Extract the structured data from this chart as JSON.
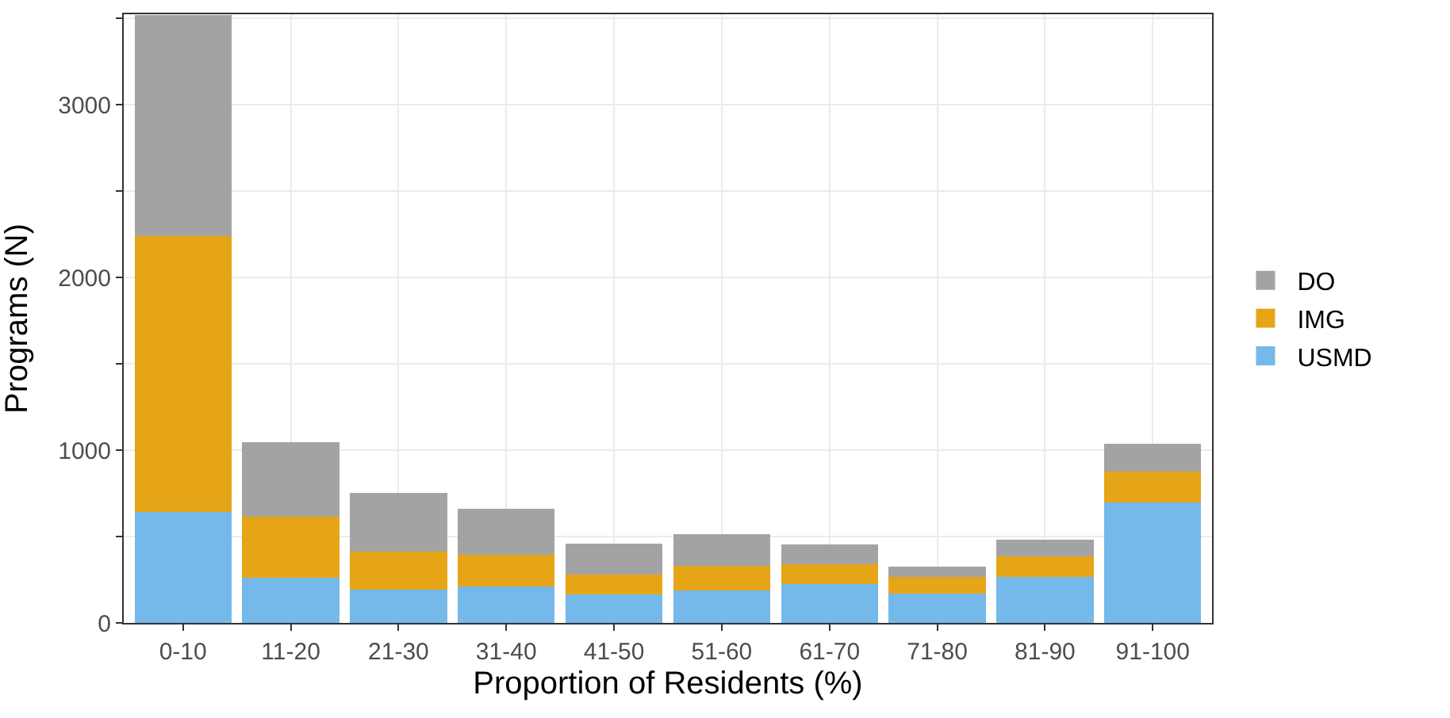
{
  "chart_data": {
    "type": "bar",
    "stacked": true,
    "xlabel": "Proportion of Residents (%)",
    "ylabel": "Programs (N)",
    "categories": [
      "0-10",
      "11-20",
      "21-30",
      "31-40",
      "41-50",
      "51-60",
      "61-70",
      "71-80",
      "81-90",
      "91-100"
    ],
    "series": [
      {
        "name": "USMD",
        "color": "#75b9ea",
        "values": [
          641,
          261,
          193,
          209,
          163,
          190,
          227,
          172,
          264,
          696
        ]
      },
      {
        "name": "IMG",
        "color": "#e6a517",
        "values": [
          1601,
          352,
          218,
          187,
          117,
          141,
          111,
          95,
          122,
          182
        ]
      },
      {
        "name": "DO",
        "color": "#a3a3a3",
        "values": [
          1280,
          433,
          341,
          266,
          177,
          184,
          116,
          61,
          96,
          159
        ]
      }
    ],
    "ylim": [
      0,
      3525
    ],
    "yticks": [
      0,
      {
        "value": 500,
        "label": null
      },
      1000,
      {
        "value": 1500,
        "label": null
      },
      2000,
      {
        "value": 2500,
        "label": null
      },
      3000,
      {
        "value": 3500,
        "label": null
      }
    ],
    "grid": true,
    "legend": "right"
  }
}
